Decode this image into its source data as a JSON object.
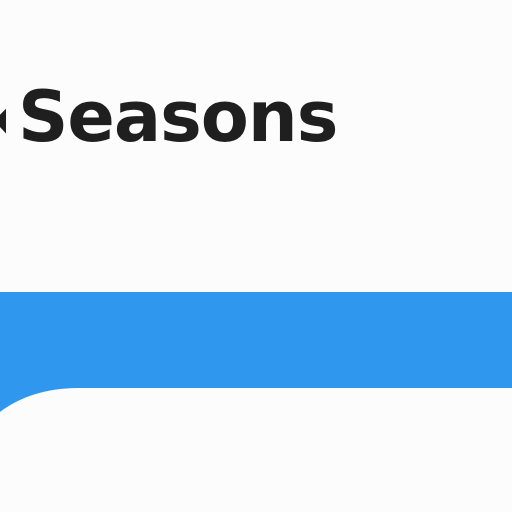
{
  "page": {
    "title_fragment": "k",
    "title": "Seasons"
  },
  "colors": {
    "background": "#fcfcfc",
    "accent": "#2f98ee",
    "text": "#1f1f1f"
  }
}
